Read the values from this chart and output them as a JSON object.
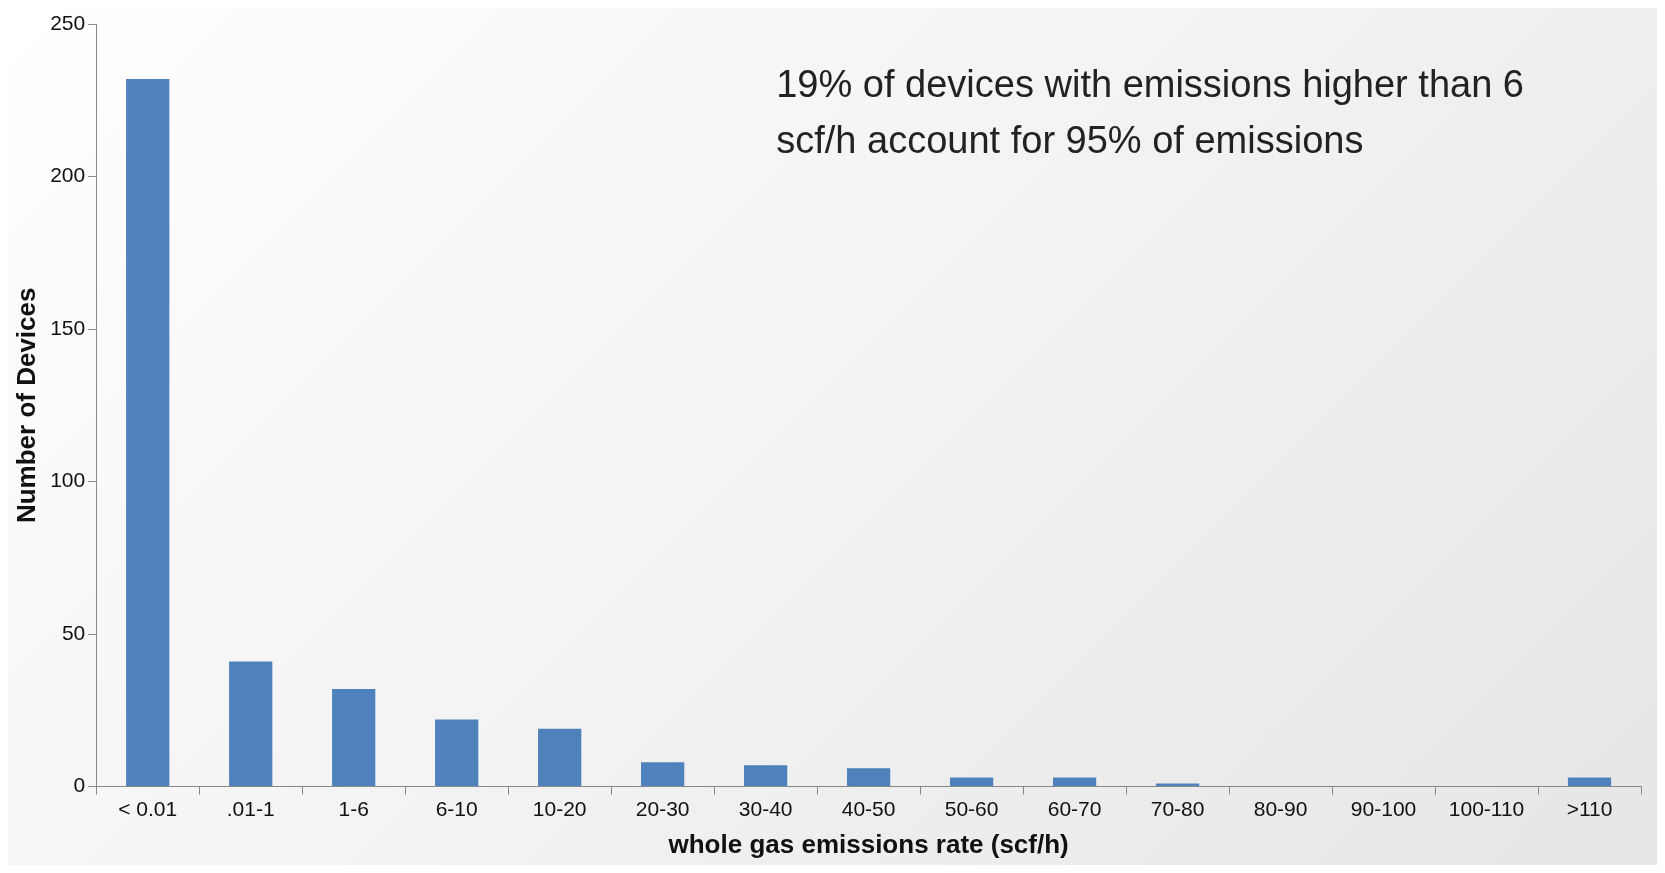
{
  "chart_data": {
    "type": "bar",
    "xlabel": "whole gas emissions rate (scf/h)",
    "ylabel": "Number of Devices",
    "categories": [
      "< 0.01",
      ".01-1",
      "1-6",
      "6-10",
      "10-20",
      "20-30",
      "30-40",
      "40-50",
      "50-60",
      "60-70",
      "70-80",
      "80-90",
      "90-100",
      "100-110",
      ">110"
    ],
    "values": [
      232,
      41,
      32,
      22,
      19,
      8,
      7,
      6,
      3,
      3,
      1,
      0,
      0,
      0,
      3
    ],
    "color": "#4f81bd",
    "ylim": [
      0,
      250
    ],
    "yticks": [
      0,
      50,
      100,
      150,
      200,
      250
    ],
    "annotations": [
      "19% of devices with emissions higher than 6 scf/h account for 95% of emissions"
    ]
  }
}
